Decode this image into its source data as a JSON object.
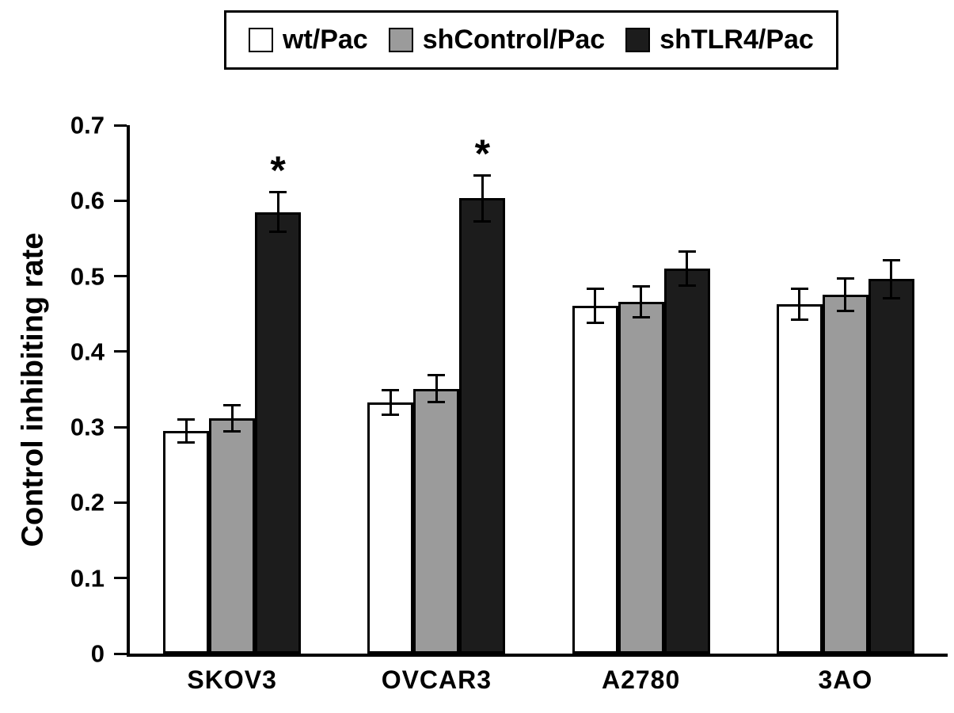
{
  "figure": {
    "background": "#ffffff",
    "axis_color": "#000000"
  },
  "chart_data": {
    "type": "bar",
    "title": "",
    "xlabel": "",
    "ylabel": "Control inhibiting rate",
    "ylim": [
      0,
      0.7
    ],
    "ytick_step": 0.1,
    "yticks": [
      "0",
      "0.1",
      "0.2",
      "0.3",
      "0.4",
      "0.5",
      "0.6",
      "0.7"
    ],
    "grid": false,
    "legend_position": "top",
    "categories": [
      "SKOV3",
      "OVCAR3",
      "A2780",
      "3AO"
    ],
    "series": [
      {
        "name": "wt/Pac",
        "color": "#ffffff",
        "values": [
          0.295,
          0.333,
          0.461,
          0.463
        ],
        "errors": [
          0.016,
          0.017,
          0.023,
          0.021
        ]
      },
      {
        "name": "shControl/Pac",
        "color": "#9b9b9b",
        "values": [
          0.312,
          0.351,
          0.466,
          0.475
        ],
        "errors": [
          0.018,
          0.018,
          0.021,
          0.022
        ]
      },
      {
        "name": "shTLR4/Pac",
        "color": "#1c1c1c",
        "values": [
          0.585,
          0.603,
          0.51,
          0.496
        ],
        "errors": [
          0.027,
          0.031,
          0.023,
          0.026
        ]
      }
    ],
    "annotations": [
      {
        "category": "SKOV3",
        "series": "shTLR4/Pac",
        "marker": "*"
      },
      {
        "category": "OVCAR3",
        "series": "shTLR4/Pac",
        "marker": "*"
      }
    ]
  }
}
